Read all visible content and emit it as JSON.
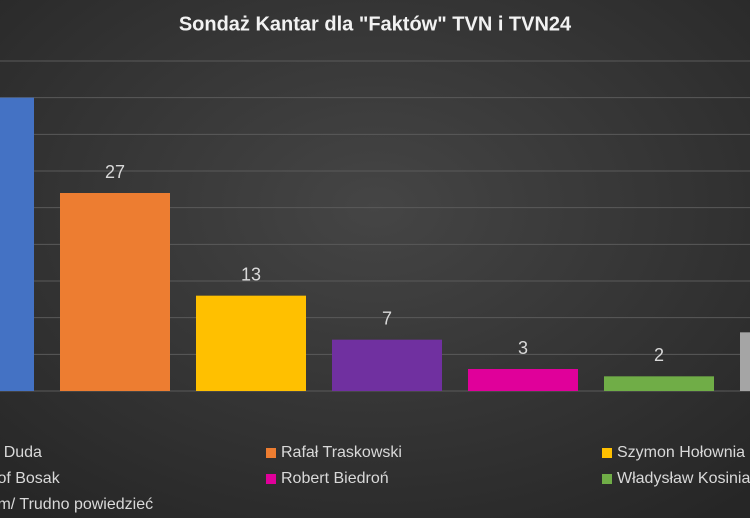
{
  "chart_data": {
    "type": "bar",
    "title": "Sondaż Kantar dla \"Faktów\" TVN i TVN24",
    "categories": [
      "Andrzej Duda",
      "Rafał Traskowski",
      "Szymon Hołownia",
      "Krzysztof Bosak",
      "Robert Biedroń",
      "Władysław Kosiniak-Kamysz",
      "Nie wiem/ Trudno powiedzieć"
    ],
    "values": [
      40,
      27,
      13,
      7,
      3,
      2,
      8
    ],
    "colors": [
      "#4472c4",
      "#ed7d31",
      "#ffc000",
      "#7030a0",
      "#e0009a",
      "#70ad47",
      "#a5a5a5"
    ],
    "ylim": [
      0,
      45
    ],
    "yticks": [
      0,
      5,
      10,
      15,
      20,
      25,
      30,
      35,
      40,
      45
    ],
    "grid": true,
    "legend": "bottom"
  }
}
